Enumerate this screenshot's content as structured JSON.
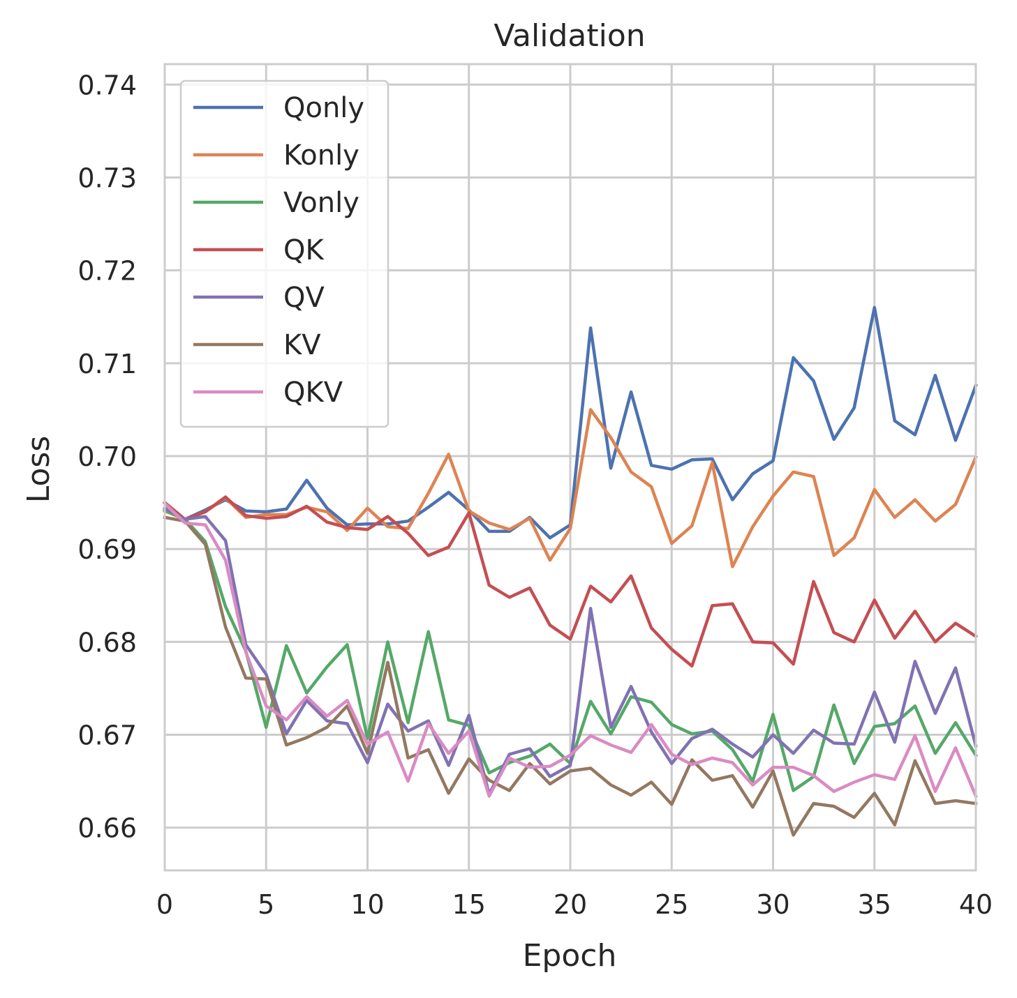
{
  "chart_data": {
    "type": "line",
    "title": "Validation",
    "xlabel": "Epoch",
    "ylabel": "Loss",
    "xlim": [
      0,
      40
    ],
    "ylim": [
      0.6554,
      0.7422
    ],
    "xticks": [
      0,
      5,
      10,
      15,
      20,
      25,
      30,
      35,
      40
    ],
    "xtick_labels": [
      "0",
      "5",
      "10",
      "15",
      "20",
      "25",
      "30",
      "35",
      "40"
    ],
    "yticks": [
      0.66,
      0.67,
      0.68,
      0.69,
      0.7,
      0.71,
      0.72,
      0.73,
      0.74
    ],
    "ytick_labels": [
      "0.66",
      "0.67",
      "0.68",
      "0.69",
      "0.70",
      "0.71",
      "0.72",
      "0.73",
      "0.74"
    ],
    "grid": true,
    "legend_position": "upper-left",
    "x": [
      0,
      1,
      2,
      3,
      4,
      5,
      6,
      7,
      8,
      9,
      10,
      11,
      12,
      13,
      14,
      15,
      16,
      17,
      18,
      19,
      20,
      21,
      22,
      23,
      24,
      25,
      26,
      27,
      28,
      29,
      30,
      31,
      32,
      33,
      34,
      35,
      36,
      37,
      38,
      39,
      40
    ],
    "series": [
      {
        "name": "Qonly",
        "color": "#4c72b0",
        "values": [
          0.6942,
          0.6932,
          0.6942,
          0.6953,
          0.6941,
          0.694,
          0.6943,
          0.6974,
          0.6944,
          0.6926,
          0.6927,
          0.6927,
          0.693,
          0.6945,
          0.6961,
          0.6942,
          0.6919,
          0.6919,
          0.6934,
          0.6912,
          0.6926,
          0.7138,
          0.6987,
          0.7069,
          0.699,
          0.6986,
          0.6996,
          0.6997,
          0.6953,
          0.6981,
          0.6995,
          0.7106,
          0.7081,
          0.7018,
          0.7052,
          0.716,
          0.7038,
          0.7023,
          0.7087,
          0.7017,
          0.7076
        ]
      },
      {
        "name": "Konly",
        "color": "#dd8452",
        "values": [
          0.6941,
          0.6932,
          0.694,
          0.6955,
          0.6934,
          0.6937,
          0.6937,
          0.6945,
          0.694,
          0.692,
          0.6944,
          0.6924,
          0.6922,
          0.696,
          0.7002,
          0.6941,
          0.6928,
          0.6921,
          0.6933,
          0.6888,
          0.6922,
          0.705,
          0.702,
          0.6983,
          0.6967,
          0.6906,
          0.6925,
          0.6993,
          0.6881,
          0.6924,
          0.6957,
          0.6983,
          0.6978,
          0.6893,
          0.6912,
          0.6964,
          0.6934,
          0.6953,
          0.693,
          0.6948,
          0.6999
        ]
      },
      {
        "name": "Vonly",
        "color": "#55a868",
        "values": [
          0.6942,
          0.6932,
          0.6908,
          0.6838,
          0.679,
          0.6708,
          0.6796,
          0.6745,
          0.6773,
          0.6797,
          0.6696,
          0.68,
          0.6713,
          0.6811,
          0.6716,
          0.671,
          0.6659,
          0.667,
          0.6677,
          0.669,
          0.6669,
          0.6736,
          0.6701,
          0.6741,
          0.6735,
          0.6711,
          0.6701,
          0.6704,
          0.6684,
          0.665,
          0.6722,
          0.664,
          0.6655,
          0.6732,
          0.6669,
          0.6709,
          0.6712,
          0.6731,
          0.668,
          0.6713,
          0.6678
        ]
      },
      {
        "name": "QK",
        "color": "#c44e52",
        "values": [
          0.695,
          0.6932,
          0.694,
          0.6956,
          0.6936,
          0.6933,
          0.6935,
          0.6946,
          0.6929,
          0.6923,
          0.6921,
          0.6935,
          0.6917,
          0.6893,
          0.6902,
          0.6939,
          0.6861,
          0.6848,
          0.6858,
          0.6818,
          0.6803,
          0.686,
          0.6843,
          0.6871,
          0.6815,
          0.6792,
          0.6774,
          0.6839,
          0.6841,
          0.68,
          0.6799,
          0.6776,
          0.6865,
          0.681,
          0.68,
          0.6845,
          0.6804,
          0.6833,
          0.68,
          0.682,
          0.6806
        ]
      },
      {
        "name": "QV",
        "color": "#8172b3",
        "values": [
          0.6944,
          0.6932,
          0.6935,
          0.6909,
          0.6797,
          0.6765,
          0.6701,
          0.6737,
          0.6715,
          0.6712,
          0.667,
          0.6733,
          0.6704,
          0.6715,
          0.6667,
          0.6721,
          0.6636,
          0.6679,
          0.6685,
          0.6655,
          0.6667,
          0.6836,
          0.6708,
          0.6752,
          0.6703,
          0.6669,
          0.6696,
          0.6706,
          0.669,
          0.6676,
          0.67,
          0.668,
          0.6705,
          0.6691,
          0.669,
          0.6746,
          0.6692,
          0.6779,
          0.6723,
          0.6772,
          0.6688
        ]
      },
      {
        "name": "KV",
        "color": "#937860",
        "values": [
          0.6934,
          0.693,
          0.6905,
          0.6816,
          0.6761,
          0.676,
          0.6689,
          0.6697,
          0.6708,
          0.6731,
          0.668,
          0.6778,
          0.6675,
          0.6684,
          0.6637,
          0.6674,
          0.6651,
          0.664,
          0.6669,
          0.6647,
          0.6661,
          0.6664,
          0.6646,
          0.6635,
          0.6649,
          0.6625,
          0.6673,
          0.6651,
          0.6656,
          0.6622,
          0.6661,
          0.6592,
          0.6626,
          0.6623,
          0.6611,
          0.6637,
          0.6603,
          0.6672,
          0.6626,
          0.6629,
          0.6626
        ]
      },
      {
        "name": "QKV",
        "color": "#da8bc3",
        "values": [
          0.6949,
          0.6928,
          0.6926,
          0.6888,
          0.6789,
          0.6731,
          0.6716,
          0.6741,
          0.672,
          0.6737,
          0.669,
          0.6703,
          0.665,
          0.6712,
          0.668,
          0.6704,
          0.6634,
          0.6675,
          0.6665,
          0.6666,
          0.6678,
          0.6699,
          0.6689,
          0.6681,
          0.6711,
          0.6679,
          0.6668,
          0.6675,
          0.667,
          0.6646,
          0.6665,
          0.6665,
          0.6656,
          0.6639,
          0.6649,
          0.6657,
          0.6652,
          0.6699,
          0.6639,
          0.6686,
          0.6634
        ]
      }
    ]
  }
}
